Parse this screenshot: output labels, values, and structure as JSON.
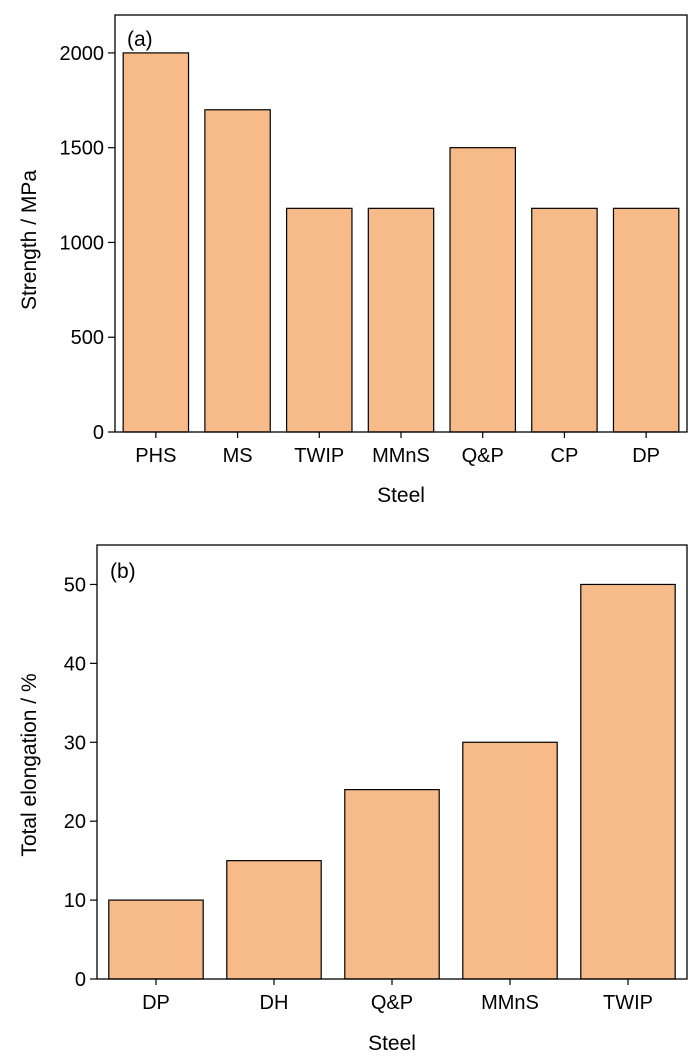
{
  "colors": {
    "bar_fill": "#f7bb8a",
    "bar_stroke": "#000000",
    "axis": "#000000"
  },
  "chart_data": [
    {
      "type": "bar",
      "panel_label": "(a)",
      "categories": [
        "PHS",
        "MS",
        "TWIP",
        "MMnS",
        "Q&P",
        "CP",
        "DP"
      ],
      "values": [
        2000,
        1700,
        1180,
        1180,
        1500,
        1180,
        1180
      ],
      "xlabel": "Steel",
      "ylabel": "Strength / MPa",
      "ylim": [
        0,
        2200
      ],
      "yticks": [
        0,
        500,
        1000,
        1500,
        2000
      ],
      "grid": false
    },
    {
      "type": "bar",
      "panel_label": "(b)",
      "categories": [
        "DP",
        "DH",
        "Q&P",
        "MMnS",
        "TWIP"
      ],
      "values": [
        10,
        15,
        24,
        30,
        50
      ],
      "xlabel": "Steel",
      "ylabel": "Total elongation / %",
      "ylim": [
        0,
        55
      ],
      "yticks": [
        0,
        10,
        20,
        30,
        40,
        50
      ],
      "grid": false
    }
  ]
}
